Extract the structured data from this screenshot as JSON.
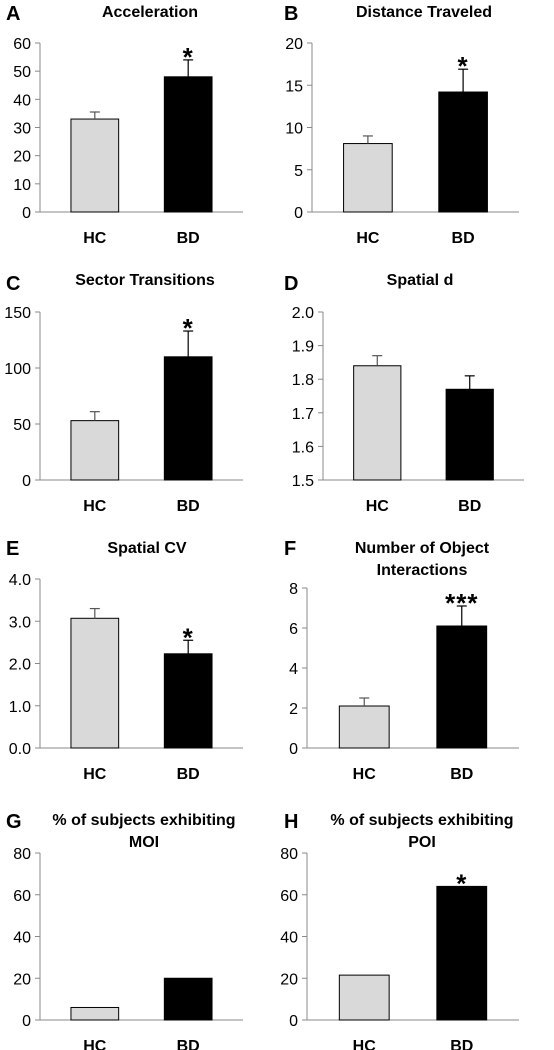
{
  "colors": {
    "hc": "#d9d9d9",
    "bd": "#000000",
    "axis": "#888888"
  },
  "chart_data": [
    {
      "panel": "A",
      "type": "bar",
      "title": [
        "Acceleration"
      ],
      "categories": [
        "HC",
        "BD"
      ],
      "values": [
        33,
        48
      ],
      "errors": [
        2.5,
        6
      ],
      "ylim": [
        0,
        60
      ],
      "yticks": [
        "0",
        "10",
        "20",
        "30",
        "40",
        "50",
        "60"
      ],
      "significance": [
        "",
        "*"
      ],
      "grid": false
    },
    {
      "panel": "B",
      "type": "bar",
      "title": [
        "Distance Traveled"
      ],
      "categories": [
        "HC",
        "BD"
      ],
      "values": [
        8.1,
        14.2
      ],
      "errors": [
        0.9,
        2.7
      ],
      "ylim": [
        0,
        20
      ],
      "yticks": [
        "0",
        "5",
        "10",
        "15",
        "20"
      ],
      "significance": [
        "",
        "*"
      ],
      "grid": false
    },
    {
      "panel": "C",
      "type": "bar",
      "title": [
        "Sector Transitions"
      ],
      "categories": [
        "HC",
        "BD"
      ],
      "values": [
        53,
        110
      ],
      "errors": [
        8,
        23
      ],
      "ylim": [
        0,
        150
      ],
      "yticks": [
        "0",
        "50",
        "100",
        "150"
      ],
      "significance": [
        "",
        "*"
      ],
      "grid": false
    },
    {
      "panel": "D",
      "type": "bar",
      "title": [
        "Spatial d"
      ],
      "categories": [
        "HC",
        "BD"
      ],
      "values": [
        1.84,
        1.77
      ],
      "errors": [
        0.03,
        0.04
      ],
      "ylim": [
        1.5,
        2.0
      ],
      "yticks": [
        "1.5",
        "1.6",
        "1.7",
        "1.8",
        "1.9",
        "2.0"
      ],
      "significance": [
        "",
        ""
      ],
      "grid": false
    },
    {
      "panel": "E",
      "type": "bar",
      "title": [
        "Spatial CV"
      ],
      "categories": [
        "HC",
        "BD"
      ],
      "values": [
        3.07,
        2.23
      ],
      "errors": [
        0.23,
        0.32
      ],
      "ylim": [
        0,
        4
      ],
      "yticks": [
        "0.0",
        "1.0",
        "2.0",
        "3.0",
        "4.0"
      ],
      "significance": [
        "",
        "*"
      ],
      "grid": false
    },
    {
      "panel": "F",
      "type": "bar",
      "title": [
        "Number of Object",
        "Interactions"
      ],
      "categories": [
        "HC",
        "BD"
      ],
      "values": [
        2.1,
        6.1
      ],
      "errors": [
        0.4,
        1.0
      ],
      "ylim": [
        0,
        8
      ],
      "yticks": [
        "0",
        "2",
        "4",
        "6",
        "8"
      ],
      "significance": [
        "",
        "***"
      ],
      "grid": false
    },
    {
      "panel": "G",
      "type": "bar",
      "title": [
        "% of subjects  exhibiting",
        "MOI"
      ],
      "categories": [
        "HC",
        "BD"
      ],
      "values": [
        6,
        20
      ],
      "errors": [
        0,
        0
      ],
      "ylim": [
        0,
        80
      ],
      "yticks": [
        "0",
        "20",
        "40",
        "60",
        "80"
      ],
      "significance": [
        "",
        ""
      ],
      "grid": false
    },
    {
      "panel": "H",
      "type": "bar",
      "title": [
        "% of subjects  exhibiting",
        "POI"
      ],
      "categories": [
        "HC",
        "BD"
      ],
      "values": [
        21.5,
        64
      ],
      "errors": [
        0,
        0
      ],
      "ylim": [
        0,
        80
      ],
      "yticks": [
        "0",
        "20",
        "40",
        "60",
        "80"
      ],
      "significance": [
        "",
        "*"
      ],
      "grid": false
    }
  ]
}
